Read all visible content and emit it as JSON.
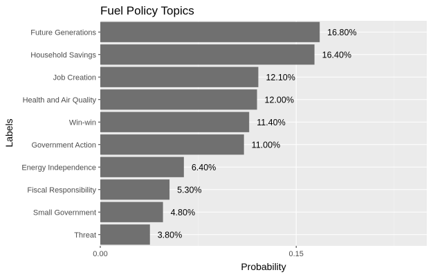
{
  "chart_data": {
    "type": "bar",
    "orientation": "horizontal",
    "title": "Fuel Policy Topics",
    "xlabel": "Probability",
    "ylabel": "Labels",
    "categories": [
      "Future Generations",
      "Household Savings",
      "Job Creation",
      "Health and Air Quality",
      "Win-win",
      "Government Action",
      "Energy Independence",
      "Fiscal Responsibility",
      "Small Government",
      "Threat"
    ],
    "values": [
      0.168,
      0.164,
      0.121,
      0.12,
      0.114,
      0.11,
      0.064,
      0.053,
      0.048,
      0.038
    ],
    "data_labels": [
      "16.80%",
      "16.40%",
      "12.10%",
      "12.00%",
      "11.40%",
      "11.00%",
      "6.40%",
      "5.30%",
      "4.80%",
      "3.80%"
    ],
    "x_ticks": [
      {
        "value": 0.0,
        "label": "0.00"
      },
      {
        "value": 0.15,
        "label": "0.15"
      }
    ],
    "xlim": [
      0,
      0.25
    ],
    "grid": true,
    "legend": "none",
    "colors": {
      "bar": "#707070",
      "panel": "#ebebeb",
      "grid_major": "#ffffff",
      "grid_minor": "#f5f5f5"
    }
  }
}
